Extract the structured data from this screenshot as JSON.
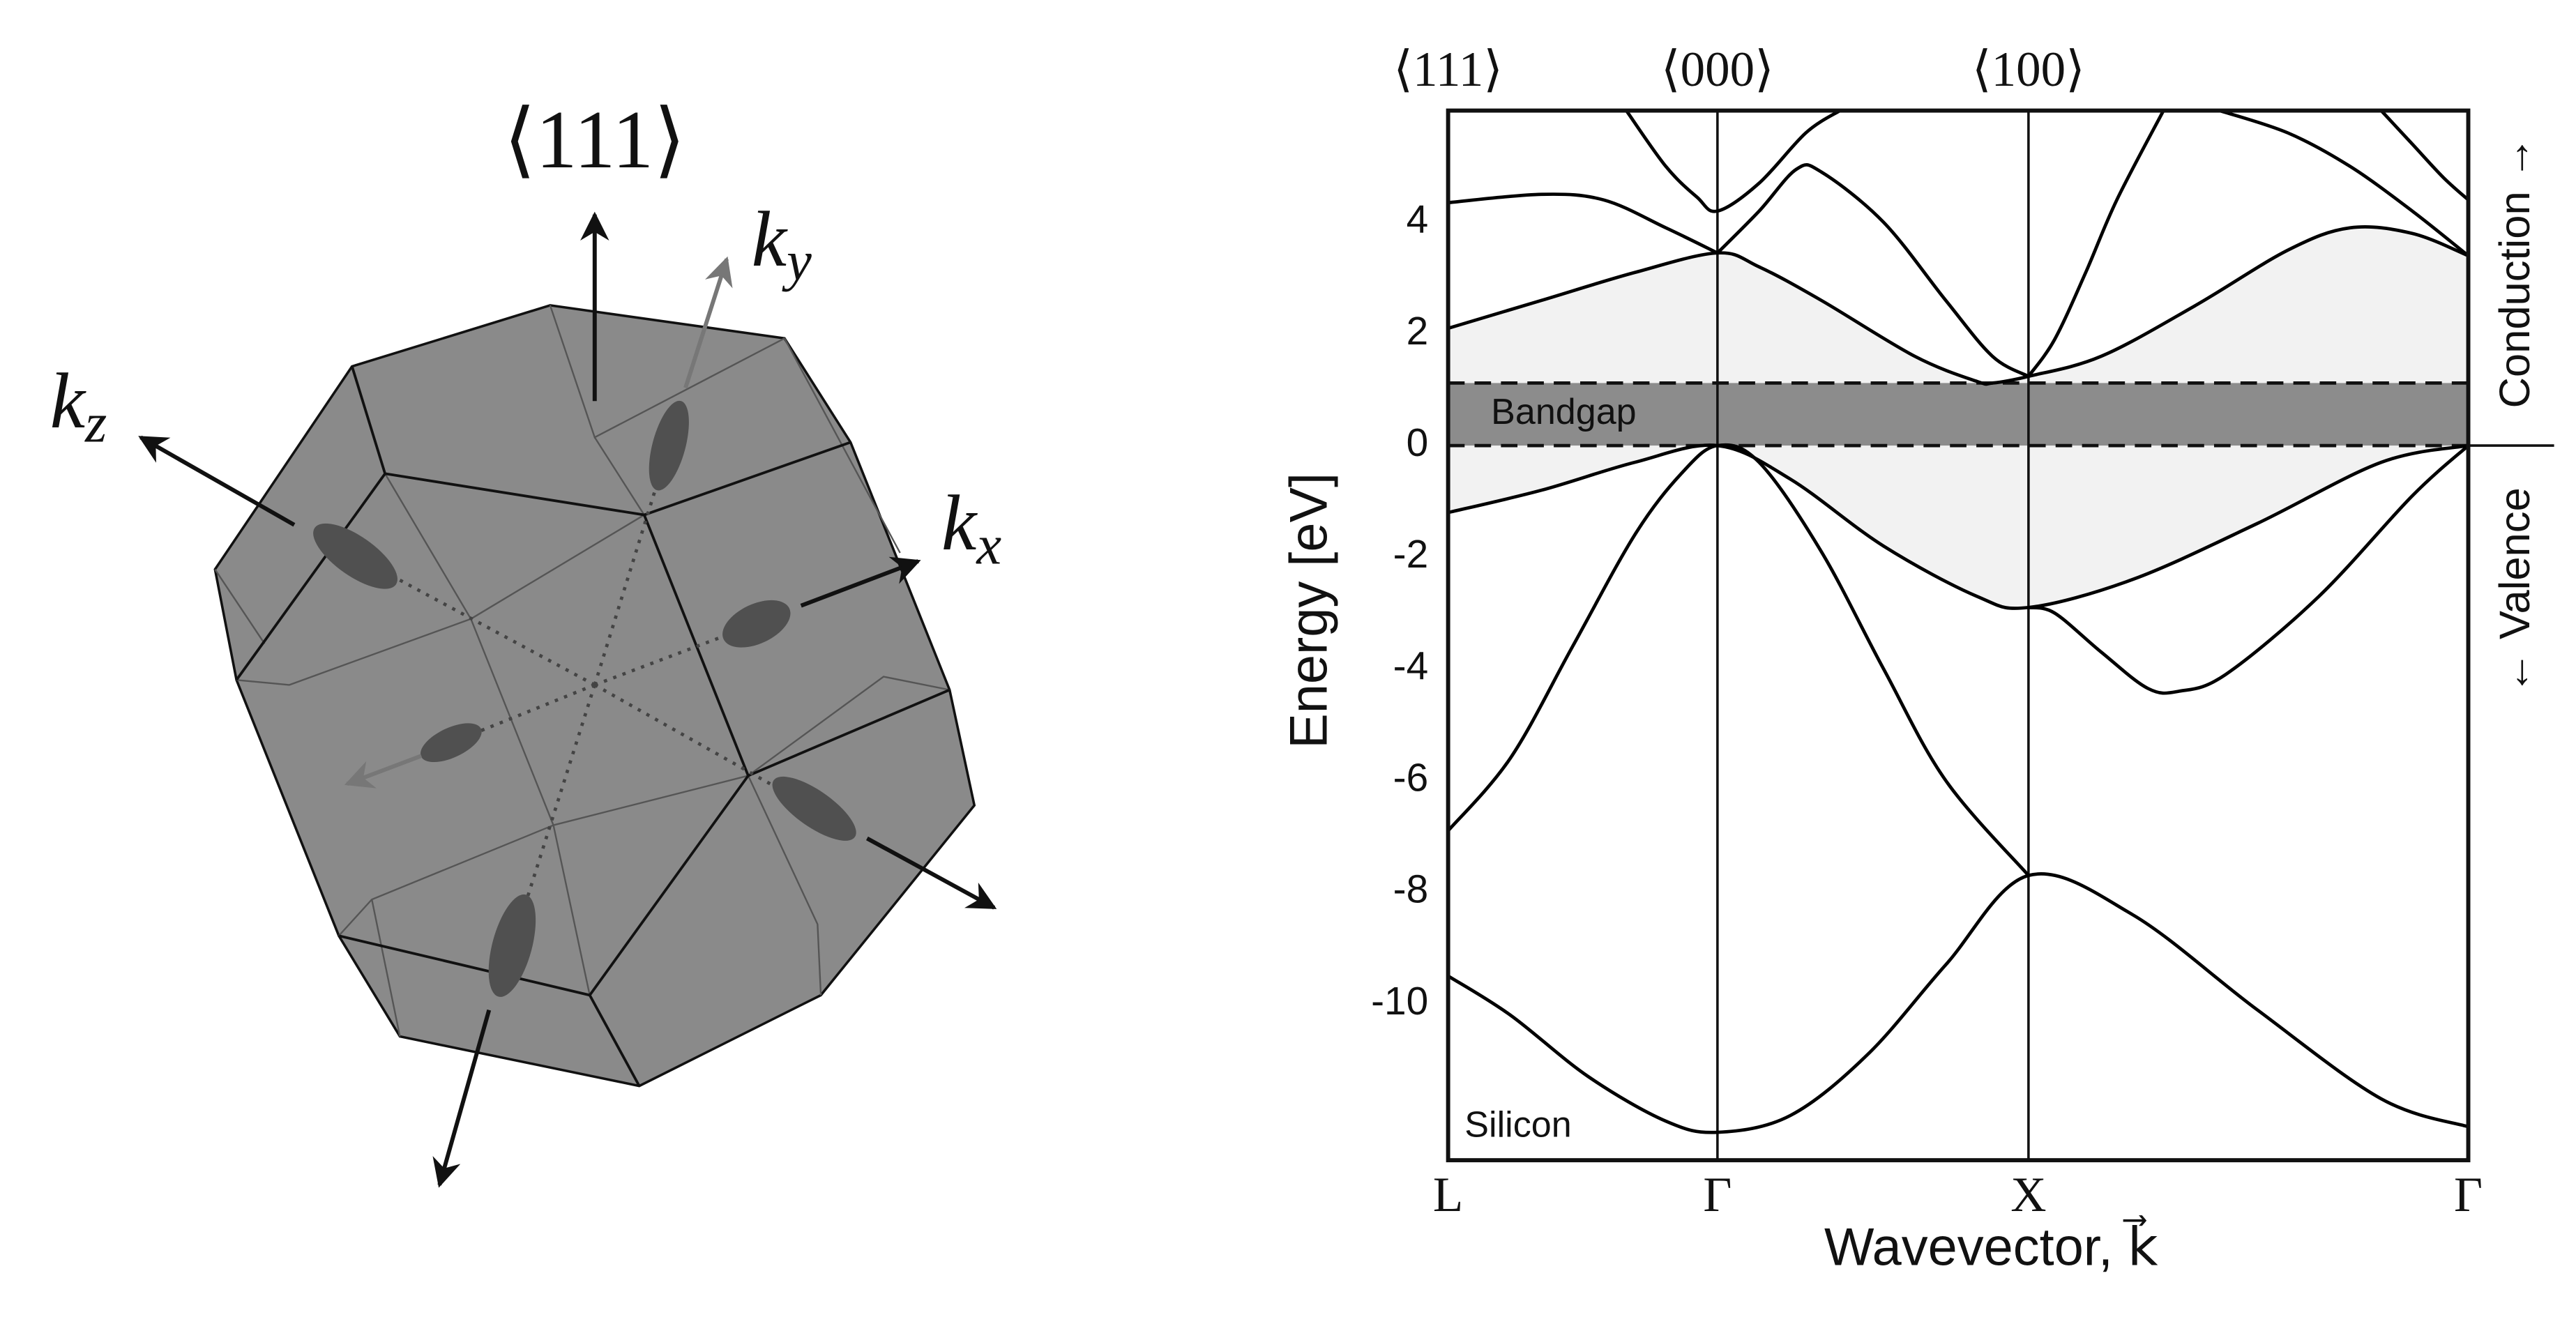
{
  "diagram": {
    "labels": [
      {
        "base": "⟨111⟩",
        "sub": ""
      },
      {
        "base": "k",
        "sub": "y"
      },
      {
        "base": "k",
        "sub": "z"
      },
      {
        "base": "k",
        "sub": "x"
      }
    ]
  },
  "chart_data": {
    "type": "line",
    "xlabel": "Wavevector, k⃗",
    "ylabel": "Energy [eV]",
    "annotation": "Silicon",
    "side_labels": [
      "Conduction →",
      "← Valence"
    ],
    "xlim": [
      0,
      3.28
    ],
    "ylim": [
      -12.8,
      6
    ],
    "xticks": [
      {
        "value": 0,
        "label": "L"
      },
      {
        "value": 0.866,
        "label": "Γ"
      },
      {
        "value": 1.866,
        "label": "X"
      },
      {
        "value": 3.28,
        "label": "Γ"
      }
    ],
    "top_ticks": [
      {
        "value": 0,
        "label": "⟨111⟩"
      },
      {
        "value": 0.866,
        "label": "⟨000⟩"
      },
      {
        "value": 1.866,
        "label": "⟨100⟩"
      }
    ],
    "yticks": [
      -10,
      -8,
      -6,
      -4,
      -2,
      0,
      2,
      4
    ],
    "grid_x": true,
    "color": "#000000",
    "bandgap": {
      "label": "Bandgap",
      "range": [
        0,
        1.12
      ],
      "color": "#8c8c8c"
    },
    "shaded_region": {
      "between": [
        2,
        4
      ],
      "color": "#f2f2f2"
    },
    "series": [
      {
        "x": [
          0,
          0.2,
          0.45,
          0.7,
          0.866,
          1.1,
          1.35,
          1.6,
          1.866,
          2.2,
          2.6,
          3.0,
          3.28
        ],
        "values": [
          -9.5,
          -10.2,
          -11.3,
          -12.1,
          -12.3,
          -12.0,
          -10.9,
          -9.3,
          -7.7,
          -8.4,
          -10.1,
          -11.7,
          -12.2
        ]
      },
      {
        "x": [
          0,
          0.2,
          0.4,
          0.6,
          0.75,
          0.866,
          1.0,
          1.2,
          1.4,
          1.6,
          1.866
        ],
        "values": [
          -6.9,
          -5.6,
          -3.6,
          -1.6,
          -0.5,
          0,
          -0.3,
          -1.9,
          -4.0,
          -6.0,
          -7.7
        ]
      },
      {
        "x": [
          0,
          0.3,
          0.6,
          0.866,
          1.1,
          1.4,
          1.7,
          1.866,
          2.2,
          2.6,
          3.0,
          3.28
        ],
        "values": [
          -1.2,
          -0.8,
          -0.3,
          0,
          -0.6,
          -1.8,
          -2.7,
          -2.9,
          -2.4,
          -1.4,
          -0.3,
          0
        ]
      },
      {
        "x": [
          1.866,
          1.95,
          2.1,
          2.25,
          2.35,
          2.5,
          2.8,
          3.1,
          3.28
        ],
        "values": [
          -2.9,
          -3.0,
          -3.7,
          -4.35,
          -4.4,
          -4.1,
          -2.7,
          -0.9,
          0
        ]
      },
      {
        "x": [
          0,
          0.3,
          0.6,
          0.866,
          1.0,
          1.2,
          1.5,
          1.7,
          1.75,
          1.866,
          2.1,
          2.4,
          2.7,
          2.9,
          3.1,
          3.28
        ],
        "values": [
          2.1,
          2.6,
          3.1,
          3.45,
          3.2,
          2.6,
          1.6,
          1.15,
          1.12,
          1.24,
          1.6,
          2.5,
          3.5,
          3.9,
          3.8,
          3.4
        ]
      },
      {
        "x": [
          0,
          0.3,
          0.5,
          0.7,
          0.866
        ],
        "values": [
          4.35,
          4.5,
          4.4,
          3.9,
          3.45
        ]
      },
      {
        "x": [
          0.573,
          0.7,
          0.8,
          0.866,
          1.0,
          1.15,
          1.26
        ],
        "values": [
          6.0,
          5.0,
          4.45,
          4.2,
          4.7,
          5.6,
          6.0
        ]
      },
      {
        "x": [
          0.866,
          1.0,
          1.12,
          1.2,
          1.4,
          1.6,
          1.75,
          1.866
        ],
        "values": [
          3.45,
          4.2,
          4.95,
          4.9,
          4.0,
          2.6,
          1.6,
          1.24
        ]
      },
      {
        "x": [
          1.866,
          1.95,
          2.05,
          2.15,
          2.3
        ],
        "values": [
          1.24,
          1.9,
          3.1,
          4.4,
          6.0
        ]
      },
      {
        "x": [
          2.48,
          2.7,
          2.9,
          3.1,
          3.28
        ],
        "values": [
          6.0,
          5.6,
          5.0,
          4.2,
          3.4
        ]
      },
      {
        "x": [
          3.0,
          3.1,
          3.2,
          3.28
        ],
        "values": [
          6.0,
          5.4,
          4.8,
          4.4
        ]
      }
    ]
  }
}
